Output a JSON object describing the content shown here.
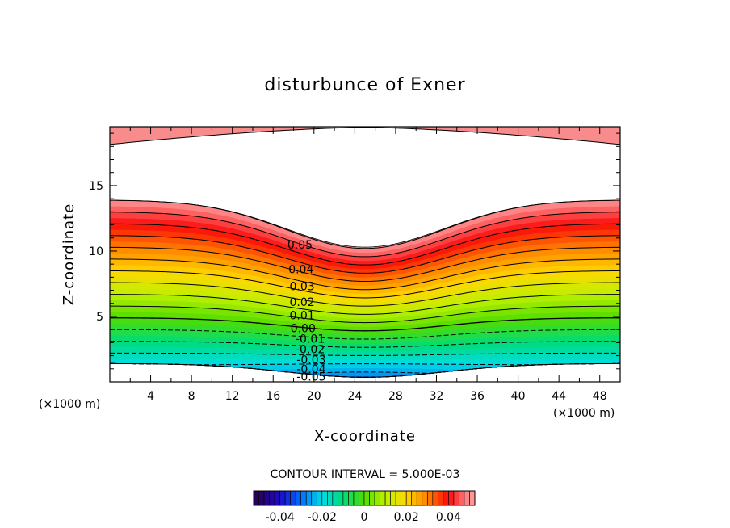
{
  "chart_data": {
    "type": "contour",
    "title": "disturbunce of Exner",
    "xlabel": "X-coordinate",
    "ylabel": "Z-coordinate",
    "x_unit_left": "(×1000 m)",
    "x_unit_right": "(×1000 m)",
    "xlim": [
      0,
      50
    ],
    "ylim": [
      0,
      19.5
    ],
    "x_ticks": [
      4,
      8,
      12,
      16,
      20,
      24,
      28,
      32,
      36,
      40,
      44,
      48
    ],
    "y_ticks": [
      5,
      10,
      15
    ],
    "contour_interval_text": "CONTOUR INTERVAL = 5.000E-03",
    "contour_interval": 0.005,
    "value_range": [
      -0.05,
      0.05
    ],
    "colorbar_ticks": [
      "-0.04",
      "-0.02",
      "0",
      "0.02",
      "0.04"
    ],
    "contour_labels": [
      {
        "text": "0.05",
        "x": 17.4,
        "z": 10.5
      },
      {
        "text": "0.04",
        "x": 17.5,
        "z": 8.6
      },
      {
        "text": "0.03",
        "x": 17.6,
        "z": 7.3
      },
      {
        "text": "0.02",
        "x": 17.6,
        "z": 6.1
      },
      {
        "text": "0.01",
        "x": 17.6,
        "z": 5.1
      },
      {
        "text": "0.00",
        "x": 17.7,
        "z": 4.1
      },
      {
        "text": "-0.01",
        "x": 18.2,
        "z": 3.3
      },
      {
        "text": "-0.02",
        "x": 18.2,
        "z": 2.5
      },
      {
        "text": "-0.03",
        "x": 18.3,
        "z": 1.7
      },
      {
        "text": "-0.04",
        "x": 18.3,
        "z": 1.0
      },
      {
        "text": "-0.05",
        "x": 18.3,
        "z": 0.4
      }
    ],
    "field_model": {
      "surface_height_edge": 1.4,
      "surface_height_center": 0.35,
      "valley_center_x": 25,
      "valley_half_width": 11,
      "zero_line_height_edge": 4.9,
      "zero_line_height_center": 3.9,
      "level_spacing_edge": 0.9,
      "level_spacing_center": 0.63,
      "top_fill_edge": 13.9,
      "top_fill_center": 10.3,
      "upper_region_boundary_center": 19.5,
      "upper_region_boundary_edge": 18.2
    }
  }
}
